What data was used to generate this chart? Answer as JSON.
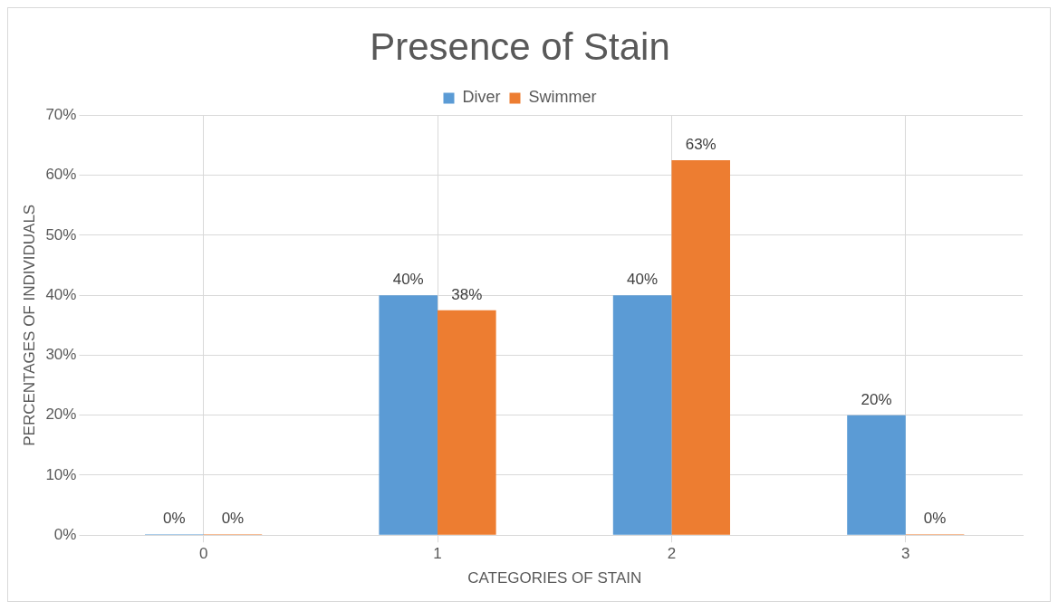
{
  "chart_data": {
    "type": "bar",
    "title": "Presence of Stain",
    "xlabel": "CATEGORIES OF STAIN",
    "ylabel": "PERCENTAGES OF INDIVIDUALS",
    "categories": [
      "0",
      "1",
      "2",
      "3"
    ],
    "series": [
      {
        "name": "Diver",
        "color": "#5b9bd5",
        "values": [
          0,
          40,
          40,
          20
        ],
        "value_labels": [
          "0%",
          "40%",
          "40%",
          "20%"
        ]
      },
      {
        "name": "Swimmer",
        "color": "#ed7d31",
        "values": [
          0,
          37.5,
          62.5,
          0
        ],
        "value_labels": [
          "0%",
          "38%",
          "63%",
          "0%"
        ]
      }
    ],
    "ylim": [
      0,
      70
    ],
    "yticks": [
      {
        "value": 0,
        "label": "0%"
      },
      {
        "value": 10,
        "label": "10%"
      },
      {
        "value": 20,
        "label": "20%"
      },
      {
        "value": 30,
        "label": "30%"
      },
      {
        "value": 40,
        "label": "40%"
      },
      {
        "value": 50,
        "label": "50%"
      },
      {
        "value": 60,
        "label": "60%"
      },
      {
        "value": 70,
        "label": "70%"
      }
    ],
    "grid": true,
    "legend": "top"
  }
}
